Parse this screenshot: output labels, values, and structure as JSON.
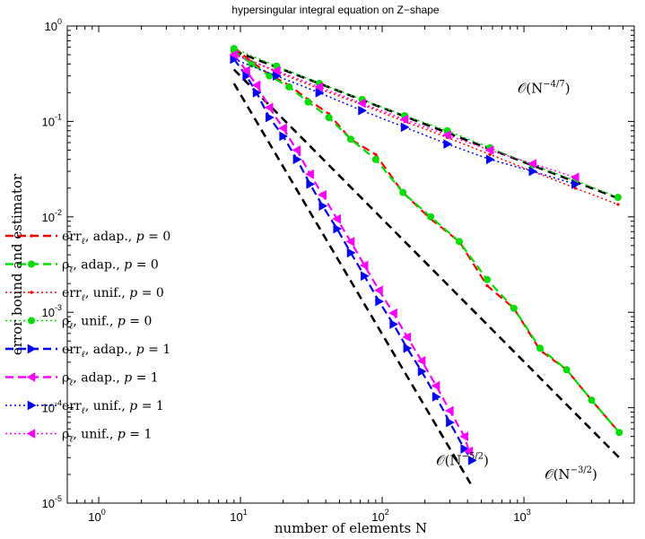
{
  "chart_data": {
    "type": "line",
    "title": "hypersingular integral equation on Z−shape",
    "xlabel": "number of elements N",
    "ylabel": "error bound and estimator",
    "xscale": "log",
    "yscale": "log",
    "xlim": [
      0.6,
      6000
    ],
    "ylim": [
      1e-05,
      1
    ],
    "x_ticks": [
      {
        "base": "10",
        "exp": "0",
        "value": 1
      },
      {
        "base": "10",
        "exp": "1",
        "value": 10
      },
      {
        "base": "10",
        "exp": "2",
        "value": 100
      },
      {
        "base": "10",
        "exp": "3",
        "value": 1000
      }
    ],
    "y_ticks": [
      {
        "base": "10",
        "exp": "0",
        "value": 1
      },
      {
        "base": "10",
        "exp": "-1",
        "value": 0.1
      },
      {
        "base": "10",
        "exp": "-2",
        "value": 0.01
      },
      {
        "base": "10",
        "exp": "-3",
        "value": 0.001
      },
      {
        "base": "10",
        "exp": "-4",
        "value": 0.0001
      },
      {
        "base": "10",
        "exp": "-5",
        "value": 1e-05
      }
    ],
    "grid": false,
    "legend_position": "left-middle",
    "series": [
      {
        "name": "err_ℓ, adap., p = 0",
        "label_parts": [
          "err",
          "ℓ",
          ", adap., ",
          "p",
          " = 0"
        ],
        "color": "#ff0000",
        "dash": "dashed",
        "marker": "dot",
        "x": [
          9,
          12,
          16,
          22,
          30,
          42,
          60,
          90,
          140,
          220,
          350,
          550,
          850,
          1300,
          2000,
          3000,
          4700
        ],
        "y": [
          0.6,
          0.42,
          0.31,
          0.24,
          0.17,
          0.12,
          0.065,
          0.045,
          0.018,
          0.0095,
          0.0055,
          0.0019,
          0.0011,
          0.0004,
          0.00025,
          0.00012,
          5.5e-05
        ]
      },
      {
        "name": "ρ_ℓ, adap., p = 0",
        "label_parts": [
          "ρ",
          "ℓ",
          ", adap., ",
          "p",
          " = 0"
        ],
        "color": "#00e000",
        "dash": "dashed",
        "marker": "circle",
        "x": [
          9,
          12,
          16,
          22,
          30,
          42,
          60,
          90,
          140,
          220,
          350,
          550,
          850,
          1300,
          2000,
          3000,
          4700
        ],
        "y": [
          0.55,
          0.4,
          0.3,
          0.23,
          0.16,
          0.11,
          0.065,
          0.04,
          0.018,
          0.01,
          0.0055,
          0.0022,
          0.0011,
          0.00042,
          0.00025,
          0.00012,
          5.5e-05
        ]
      },
      {
        "name": "err_ℓ, unif., p = 0",
        "label_parts": [
          "err",
          "ℓ",
          ", unif., ",
          "p",
          " = 0"
        ],
        "color": "#ff0000",
        "dash": "dotted",
        "marker": "dot",
        "x": [
          9,
          18,
          36,
          72,
          144,
          288,
          576,
          1152,
          2304,
          4608
        ],
        "y": [
          0.52,
          0.33,
          0.22,
          0.15,
          0.1,
          0.068,
          0.045,
          0.03,
          0.02,
          0.0135
        ]
      },
      {
        "name": "ρ_ℓ, unif., p = 0",
        "label_parts": [
          "ρ",
          "ℓ",
          ", unif., ",
          "p",
          " = 0"
        ],
        "color": "#00e000",
        "dash": "dotted",
        "marker": "circle",
        "x": [
          9,
          18,
          36,
          72,
          144,
          288,
          576,
          1152,
          2304,
          4608
        ],
        "y": [
          0.58,
          0.38,
          0.25,
          0.17,
          0.115,
          0.08,
          0.053,
          0.035,
          0.024,
          0.016
        ]
      },
      {
        "name": "err_ℓ, adap., p = 1",
        "label_parts": [
          "err",
          "ℓ",
          ", adap., ",
          "p",
          " = 1"
        ],
        "color": "#0000ff",
        "dash": "dashed",
        "marker": "triangle-right",
        "x": [
          9,
          11,
          13,
          16,
          20,
          25,
          31,
          38,
          48,
          60,
          75,
          95,
          120,
          150,
          190,
          240,
          300,
          380,
          430
        ],
        "y": [
          0.45,
          0.3,
          0.2,
          0.11,
          0.07,
          0.04,
          0.022,
          0.013,
          0.0075,
          0.0042,
          0.0024,
          0.0013,
          0.00075,
          0.00042,
          0.00024,
          0.00013,
          7e-05,
          3.7e-05,
          2.8e-05
        ]
      },
      {
        "name": "ρ_ℓ, adap., p = 1",
        "label_parts": [
          "ρ",
          "ℓ",
          ", adap., ",
          "p",
          " = 1"
        ],
        "color": "#ff00ff",
        "dash": "dashed",
        "marker": "triangle-left",
        "x": [
          9,
          11,
          13,
          16,
          20,
          25,
          31,
          38,
          48,
          60,
          75,
          95,
          120,
          150,
          190,
          240,
          300,
          380,
          410
        ],
        "y": [
          0.5,
          0.34,
          0.24,
          0.14,
          0.085,
          0.05,
          0.028,
          0.017,
          0.0095,
          0.0055,
          0.0031,
          0.0017,
          0.00098,
          0.00055,
          0.00031,
          0.00017,
          9.3e-05,
          5e-05,
          3.5e-05
        ]
      },
      {
        "name": "err_ℓ, unif., p = 1",
        "label_parts": [
          "err",
          "ℓ",
          ", unif., ",
          "p",
          " = 1"
        ],
        "color": "#0000ff",
        "dash": "dotted",
        "marker": "triangle-right",
        "x": [
          9,
          18,
          36,
          72,
          144,
          288,
          576,
          1152,
          2304
        ],
        "y": [
          0.45,
          0.3,
          0.2,
          0.13,
          0.087,
          0.058,
          0.04,
          0.03,
          0.022
        ]
      },
      {
        "name": "ρ_ℓ, unif., p = 1",
        "label_parts": [
          "ρ",
          "ℓ",
          ", unif., ",
          "p",
          " = 1"
        ],
        "color": "#ff00ff",
        "dash": "dotted",
        "marker": "triangle-left",
        "x": [
          9,
          18,
          36,
          72,
          144,
          288,
          576,
          1152,
          2304
        ],
        "y": [
          0.5,
          0.34,
          0.23,
          0.155,
          0.105,
          0.072,
          0.05,
          0.036,
          0.026
        ]
      }
    ],
    "reference_lines": [
      {
        "name": "O(N^-4/7)",
        "label_base": "𝒪(N",
        "label_exp": "−4/7",
        "label_tail": ")",
        "rate": "-4/7",
        "x": [
          9,
          4700
        ],
        "y": [
          0.55,
          0.0155
        ],
        "label_at": [
          900,
          0.2
        ]
      },
      {
        "name": "O(N^-3/2)",
        "label_base": "𝒪(N",
        "label_exp": "−3/2",
        "label_tail": ")",
        "rate": "-3/2",
        "x": [
          9,
          4700
        ],
        "y": [
          0.35,
          3e-05
        ],
        "label_at": [
          1400,
          1.8e-05
        ]
      },
      {
        "name": "O(N^-5/2)",
        "label_base": "𝒪(N",
        "label_exp": "−5/2",
        "label_tail": ")",
        "rate": "-5/2",
        "x": [
          9,
          420
        ],
        "y": [
          0.25,
          1.6e-05
        ],
        "label_at": [
          240,
          2.5e-05
        ]
      }
    ]
  }
}
